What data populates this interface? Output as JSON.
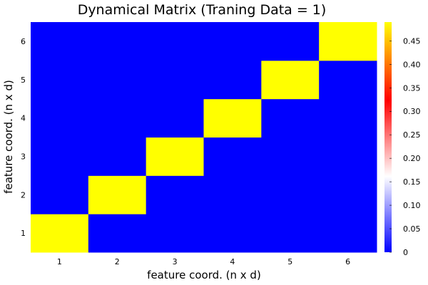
{
  "chart_data": {
    "type": "heatmap",
    "title": "Dynamical Matrix (Traning Data = 1)",
    "xlabel": "feature coord. (n x d)",
    "ylabel": "feature coord. (n x d)",
    "x_ticks": [
      "1",
      "2",
      "3",
      "4",
      "5",
      "6"
    ],
    "y_ticks": [
      "1",
      "2",
      "3",
      "4",
      "5",
      "6"
    ],
    "xlim": [
      0.5,
      6.5
    ],
    "ylim": [
      0.5,
      6.5
    ],
    "matrix": [
      [
        0.49,
        0,
        0,
        0,
        0,
        0
      ],
      [
        0,
        0.49,
        0,
        0,
        0,
        0
      ],
      [
        0,
        0,
        0.49,
        0,
        0,
        0
      ],
      [
        0,
        0,
        0,
        0.49,
        0,
        0
      ],
      [
        0,
        0,
        0,
        0,
        0.49,
        0
      ],
      [
        0,
        0,
        0,
        0,
        0,
        0.49
      ]
    ],
    "colorbar": {
      "min": 0,
      "max": 0.49,
      "ticks": [
        0,
        0.05,
        0.1,
        0.15,
        0.2,
        0.25,
        0.3,
        0.35,
        0.4,
        0.45
      ],
      "tick_labels": [
        "0",
        "0.05",
        "0.10",
        "0.15",
        "0.20",
        "0.25",
        "0.30",
        "0.35",
        "0.40",
        "0.45"
      ],
      "colors": [
        "#0000ff",
        "#ffffff",
        "#ff0000",
        "#ffff00"
      ]
    },
    "grid": false,
    "legend": "none"
  }
}
